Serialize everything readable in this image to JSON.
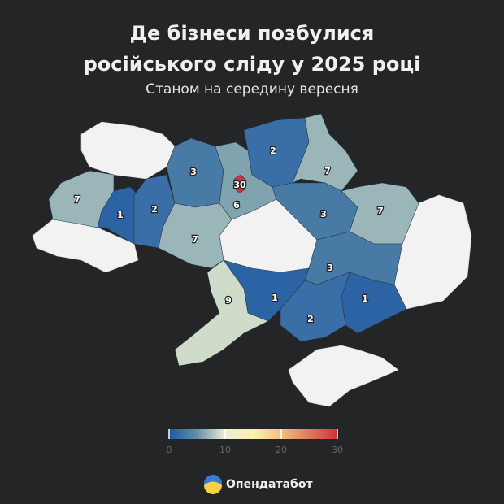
{
  "map": {
    "title": "Де бізнеси позбулися російського сліду у 2025 році",
    "subtitle": "Станом на середину вересня",
    "values": [
      7,
      1,
      2,
      3,
      6,
      30,
      2,
      7,
      3,
      7,
      7,
      3,
      1,
      2,
      1,
      9
    ],
    "colorbar": {
      "range": [
        0,
        30
      ],
      "ticks": [
        0,
        10,
        20,
        30
      ],
      "colors": [
        "#1c58a4",
        "#6690a8",
        "#e9efd2",
        "#fdf1b4",
        "#f3c07a",
        "#e07a5c",
        "#c8373b"
      ]
    },
    "no_data_color": "#f2f2f2",
    "background": "#232527"
  },
  "footer": {
    "brand": "Опендатабот"
  }
}
